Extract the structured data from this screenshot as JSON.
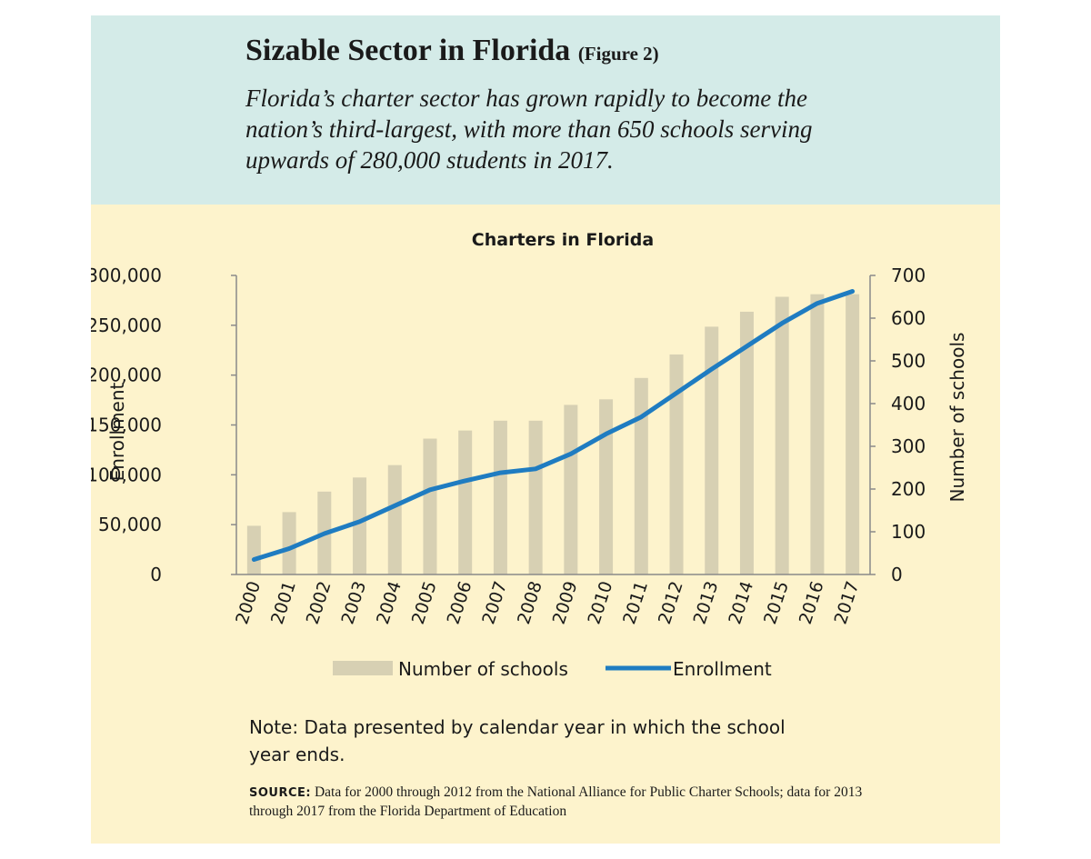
{
  "header": {
    "title": "Sizable Sector in Florida",
    "figure_label": "(Figure 2)",
    "subtitle": "Florida’s charter sector has grown rapidly to become the nation’s third-largest, with more than 650 schools serving upwards of 280,000 students in 2017."
  },
  "colors": {
    "header_bg": "#d4ebe8",
    "panel_bg": "#fdf3cc",
    "bar": "#d7d0b3",
    "line": "#1f7cc1",
    "axis": "#8a8a8a"
  },
  "chart_data": {
    "type": "bar",
    "title": "Charters in Florida",
    "categories": [
      "2000",
      "2001",
      "2002",
      "2003",
      "2004",
      "2005",
      "2006",
      "2007",
      "2008",
      "2009",
      "2010",
      "2011",
      "2012",
      "2013",
      "2014",
      "2015",
      "2016",
      "2017"
    ],
    "ylabel": "Enrollment",
    "ylabel_right": "Number of schools",
    "ylim": [
      0,
      300000
    ],
    "ylim_right": [
      0,
      700
    ],
    "yticks": [
      "0",
      "50,000",
      "100,000",
      "150,000",
      "200,000",
      "250,000",
      "300,000"
    ],
    "yticks_right": [
      "0",
      "100",
      "200",
      "300",
      "400",
      "500",
      "600",
      "700"
    ],
    "series": [
      {
        "name": "Number of schools",
        "kind": "bar",
        "axis": "right",
        "values": [
          114,
          146,
          194,
          227,
          256,
          318,
          337,
          360,
          360,
          397,
          410,
          460,
          515,
          580,
          615,
          650,
          656,
          656
        ]
      },
      {
        "name": "Enrollment",
        "kind": "line",
        "axis": "left",
        "values": [
          15000,
          26000,
          41000,
          53000,
          69000,
          85000,
          94000,
          102000,
          106000,
          121000,
          141000,
          158000,
          182000,
          206000,
          229000,
          252000,
          272000,
          284000
        ]
      }
    ],
    "legend": [
      "Number of schools",
      "Enrollment"
    ],
    "legend_position": "bottom",
    "grid": false
  },
  "note": "Note: Data presented by calendar year in which the school year ends.",
  "source": {
    "label": "SOURCE:",
    "text": "Data for 2000 through 2012 from the National Alliance for Public Charter Schools; data for 2013 through 2017 from the Florida Department of Education"
  }
}
